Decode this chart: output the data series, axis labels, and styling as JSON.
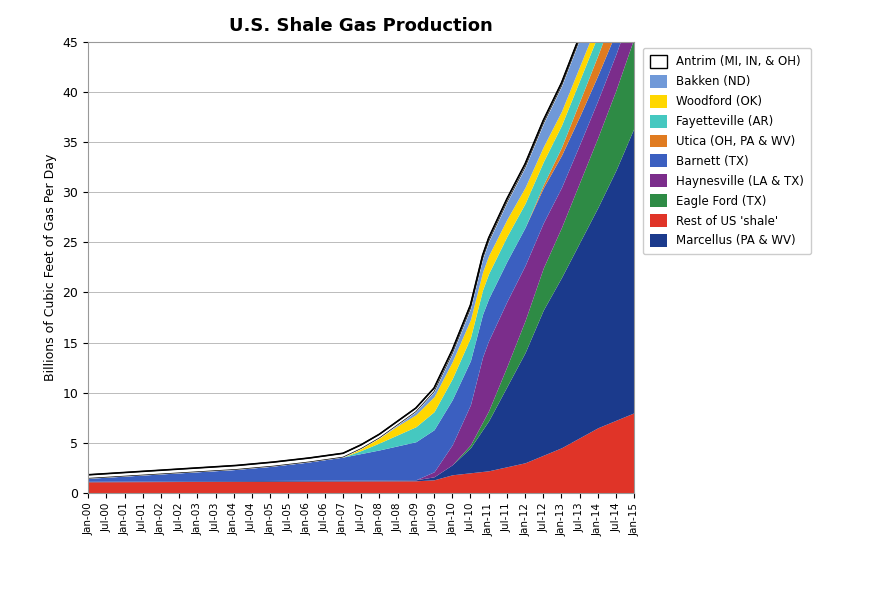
{
  "title": "U.S. Shale Gas Production",
  "ylabel": "Billions of Cubic Feet of Gas Per Day",
  "ylim": [
    0,
    45
  ],
  "yticks": [
    0,
    5,
    10,
    15,
    20,
    25,
    30,
    35,
    40,
    45
  ],
  "xtick_labels": [
    "Jan-00",
    "Jul-00",
    "Jan-01",
    "Jul-01",
    "Jan-02",
    "Jul-02",
    "Jan-03",
    "Jul-03",
    "Jan-04",
    "Jul-04",
    "Jan-05",
    "Jul-05",
    "Jan-06",
    "Jul-06",
    "Jan-07",
    "Jul-07",
    "Jan-08",
    "Jul-08",
    "Jan-09",
    "Jul-09",
    "Jan-10",
    "Jul-10",
    "Jan-11",
    "Jul-11",
    "Jan-12",
    "Jul-12",
    "Jan-13",
    "Jul-13",
    "Jan-14",
    "Jul-14",
    "Jan-15"
  ],
  "series_order": [
    "rest",
    "marcellus",
    "eagle_ford",
    "haynesville",
    "barnett",
    "utica",
    "fayetteville",
    "woodford",
    "bakken",
    "antrim"
  ],
  "colors": {
    "marcellus": "#1B3A8C",
    "rest": "#E03428",
    "eagle_ford": "#2E8B45",
    "haynesville": "#7B2D8B",
    "barnett": "#3B5FC0",
    "utica": "#E07B20",
    "fayetteville": "#45C8C0",
    "woodford": "#FFD700",
    "bakken": "#7099D8",
    "antrim": "#FFFFFF"
  },
  "labels": {
    "marcellus": "Marcellus (PA & WV)",
    "rest": "Rest of US 'shale'",
    "eagle_ford": "Eagle Ford (TX)",
    "haynesville": "Haynesville (LA & TX)",
    "barnett": "Barnett (TX)",
    "utica": "Utica (OH, PA & WV)",
    "fayetteville": "Fayetteville (AR)",
    "woodford": "Woodford (OK)",
    "bakken": "Bakken (ND)",
    "antrim": "Antrim (MI, IN, & OH)"
  },
  "legend_order": [
    "antrim",
    "bakken",
    "woodford",
    "fayetteville",
    "utica",
    "barnett",
    "haynesville",
    "eagle_ford",
    "rest",
    "marcellus"
  ]
}
